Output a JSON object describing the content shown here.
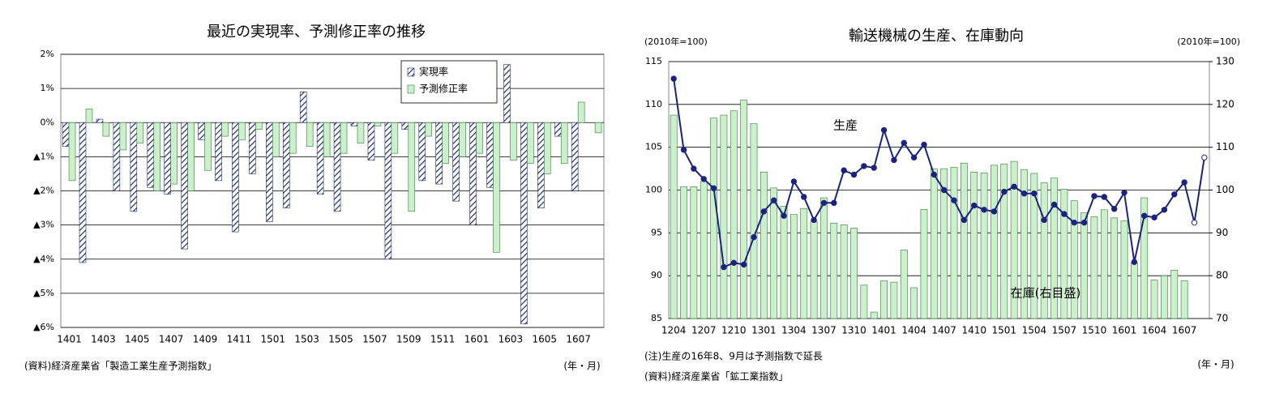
{
  "chart_data": [
    {
      "type": "bar",
      "title": "最近の実現率、予測修正率の推移",
      "categories": [
        "1401",
        null,
        "1403",
        null,
        "1405",
        null,
        "1407",
        null,
        "1409",
        null,
        "1411",
        null,
        "1501",
        null,
        "1503",
        null,
        "1505",
        null,
        "1507",
        null,
        "1509",
        null,
        "1511",
        null,
        "1601",
        null,
        "1603",
        null,
        "1605",
        null,
        "1607",
        null
      ],
      "series": [
        {
          "name": "実現率",
          "color": "#1f2a6b",
          "fill_style": "hatch",
          "values": [
            -0.7,
            -4.1,
            0.1,
            -2.0,
            -2.6,
            -1.9,
            -2.1,
            -3.7,
            -0.5,
            -1.7,
            -3.2,
            -1.5,
            -2.9,
            -2.5,
            0.9,
            -2.1,
            -2.6,
            -0.1,
            -1.1,
            -4.0,
            -0.2,
            -1.7,
            -1.8,
            -2.3,
            -3.0,
            -1.9,
            1.7,
            -5.9,
            -2.5,
            -0.4,
            -2.0,
            null
          ]
        },
        {
          "name": "予測修正率",
          "color": "#ccefcc",
          "fill_style": "solid",
          "values": [
            -1.7,
            0.4,
            -0.4,
            -0.8,
            -0.6,
            -2.0,
            -1.8,
            -2.0,
            -1.4,
            -0.4,
            -0.5,
            -0.2,
            -1.0,
            -0.9,
            -0.7,
            -1.0,
            -0.9,
            -0.6,
            -0.1,
            -0.9,
            -2.6,
            -0.4,
            -1.2,
            -1.0,
            -0.9,
            -3.8,
            -1.1,
            -1.2,
            -1.5,
            -1.2,
            0.6,
            -0.3
          ]
        }
      ],
      "ylim": [
        -6,
        2
      ],
      "yticks": [
        {
          "value": 2,
          "label": "2%"
        },
        {
          "value": 1,
          "label": "1%"
        },
        {
          "value": 0,
          "label": "0%"
        },
        {
          "value": -1,
          "label": "▲1%"
        },
        {
          "value": -2,
          "label": "▲2%"
        },
        {
          "value": -3,
          "label": "▲3%"
        },
        {
          "value": -4,
          "label": "▲4%"
        },
        {
          "value": -5,
          "label": "▲5%"
        },
        {
          "value": -6,
          "label": "▲6%"
        }
      ],
      "grid": true,
      "legend": "top-right",
      "x_unit": "(年・月)",
      "source": "(資料)経済産業省「製造工業生産予測指数」"
    },
    {
      "type": "combo",
      "title": "輸送機械の生産、在庫動向",
      "categories": [
        "1204",
        null,
        null,
        "1207",
        null,
        null,
        "1210",
        null,
        null,
        "1301",
        null,
        null,
        "1304",
        null,
        null,
        "1307",
        null,
        null,
        "1310",
        null,
        null,
        "1401",
        null,
        null,
        "1404",
        null,
        null,
        "1407",
        null,
        null,
        "1410",
        null,
        null,
        "1501",
        null,
        null,
        "1504",
        null,
        null,
        "1507",
        null,
        null,
        "1510",
        null,
        null,
        "1601",
        null,
        null,
        "1604",
        null,
        null,
        "1607",
        null,
        null
      ],
      "series": [
        {
          "name": "在庫(右目盛)",
          "type": "bar",
          "axis": "y2",
          "color": "#ccefcc",
          "values": [
            117.5,
            100.8,
            100.8,
            102.0,
            116.8,
            117.5,
            118.5,
            121.0,
            115.5,
            104.2,
            100.5,
            96.2,
            94.3,
            95.7,
            92.7,
            98.2,
            92.3,
            91.9,
            91.1,
            77.8,
            71.5,
            78.8,
            78.5,
            86.0,
            77.2,
            95.5,
            105.0,
            105.0,
            105.3,
            106.3,
            104.2,
            104.0,
            105.8,
            106.1,
            106.7,
            104.8,
            103.9,
            101.7,
            102.8,
            100.2,
            97.5,
            94.7,
            93.8,
            95.4,
            93.5,
            92.8,
            83.0,
            98.2,
            79.0,
            80.0,
            81.3,
            78.8,
            null,
            null
          ]
        },
        {
          "name": "生産",
          "type": "line",
          "color": "#1a237e",
          "open_markers": [
            52,
            53
          ],
          "values": [
            113.0,
            104.7,
            102.5,
            101.3,
            100.2,
            91.0,
            91.5,
            91.3,
            94.5,
            97.5,
            98.8,
            97.0,
            101.0,
            99.2,
            96.5,
            98.5,
            98.5,
            102.3,
            101.8,
            102.8,
            102.6,
            107.0,
            103.5,
            105.5,
            103.8,
            105.3,
            101.8,
            100.0,
            98.8,
            96.5,
            98.2,
            97.7,
            97.5,
            99.8,
            100.4,
            99.6,
            99.6,
            96.5,
            98.3,
            97.2,
            96.2,
            96.2,
            99.3,
            99.2,
            97.8,
            99.7,
            91.6,
            97.0,
            96.8,
            97.7,
            99.5,
            100.9,
            96.2,
            103.8
          ]
        }
      ],
      "ylim": [
        85,
        115
      ],
      "yticks": [
        85,
        90,
        95,
        100,
        105,
        110,
        115
      ],
      "y2lim": [
        70,
        130
      ],
      "y2ticks": [
        70,
        80,
        90,
        100,
        110,
        120,
        130
      ],
      "grid": true,
      "y_unit": "(2010年=100)",
      "y2_unit": "(2010年=100)",
      "x_unit": "(年・月)",
      "note": "(注)生産の16年8、9月は予測指数で延長",
      "source": "(資料)経済産業省「鉱工業指数」"
    }
  ]
}
